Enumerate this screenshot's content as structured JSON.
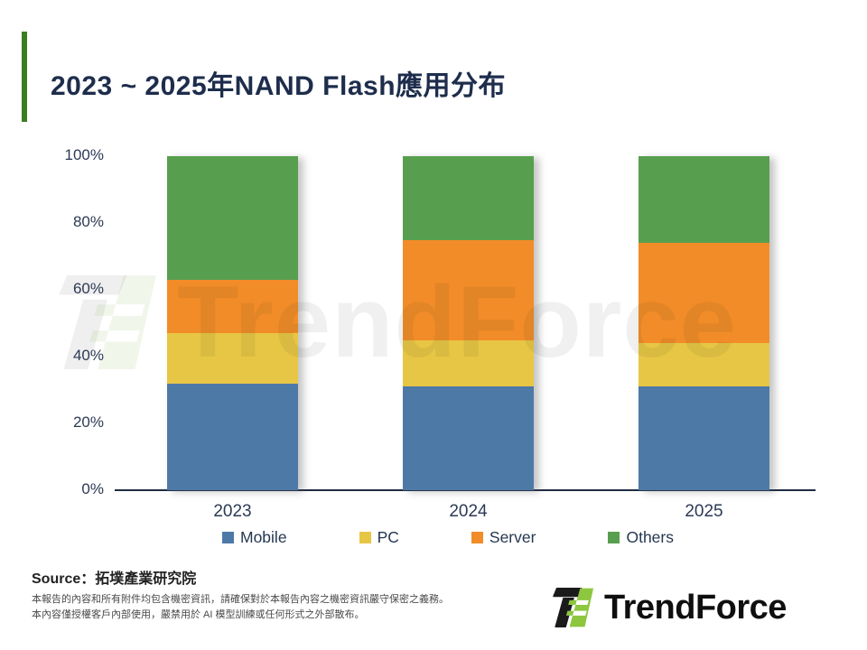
{
  "slide": {
    "title": "2023 ~ 2025年NAND Flash應用分布",
    "accent_color": "#3b7d21",
    "title_color": "#1e2d4c"
  },
  "chart_data": {
    "type": "bar",
    "stacked": true,
    "title": "2023 ~ 2025年NAND Flash應用分布",
    "categories": [
      "2023",
      "2024",
      "2025"
    ],
    "series": [
      {
        "name": "Mobile",
        "color": "#4d79a7",
        "values": [
          32,
          31,
          31
        ]
      },
      {
        "name": "PC",
        "color": "#e8c645",
        "values": [
          15,
          14,
          13
        ]
      },
      {
        "name": "Server",
        "color": "#f28c28",
        "values": [
          16,
          30,
          30
        ]
      },
      {
        "name": "Others",
        "color": "#579f4f",
        "values": [
          37,
          25,
          26
        ]
      }
    ],
    "xlabel": "",
    "ylabel": "",
    "ylim": [
      0,
      100
    ],
    "yticks": [
      "100%",
      "80%",
      "60%",
      "40%",
      "20%",
      "0%"
    ],
    "legend_position": "bottom",
    "grid": false,
    "unit": "percent"
  },
  "watermark": {
    "text": "TrendForce"
  },
  "footer": {
    "source_label": "Source",
    "source_value": "：拓墣產業研究院",
    "disclaimer_line1": "本報告的內容和所有附件均包含機密資訊，請確保對於本報告內容之機密資訊嚴守保密之義務。",
    "disclaimer_line2": "本內容僅授權客戶內部使用，嚴禁用於 AI 模型訓練或任何形式之外部散布。",
    "logo_text": "TrendForce"
  }
}
